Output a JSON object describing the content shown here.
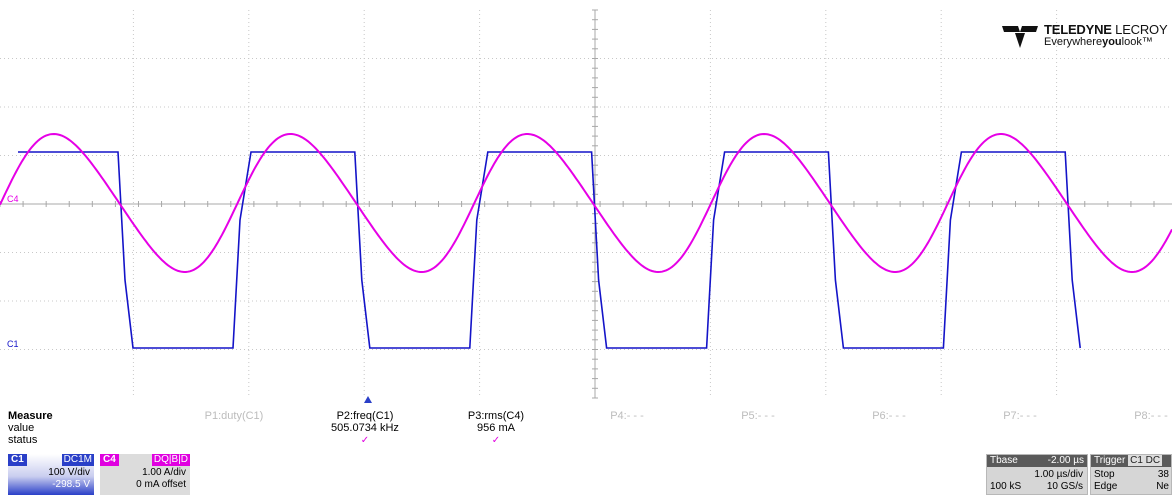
{
  "brand": {
    "name_bold": "TELEDYNE",
    "name_light": "LECROY",
    "tagline_pre": "Everywhere",
    "tagline_bold": "you",
    "tagline_post": "look",
    "tm": "™"
  },
  "traces": {
    "c4": {
      "label": "C4",
      "color": "#e600e6"
    },
    "c1": {
      "label": "C1",
      "color": "#1414c8"
    }
  },
  "measure": {
    "title": "Measure",
    "row_value": "value",
    "row_status": "status",
    "params": [
      {
        "name": "P1:duty(C1)",
        "value": "",
        "status": ""
      },
      {
        "name": "P2:freq(C1)",
        "value": "505.0734 kHz",
        "status": "✓"
      },
      {
        "name": "P3:rms(C4)",
        "value": "956 mA",
        "status": "✓"
      },
      {
        "name": "P4:- - -",
        "value": "",
        "status": ""
      },
      {
        "name": "P5:- - -",
        "value": "",
        "status": ""
      },
      {
        "name": "P6:- - -",
        "value": "",
        "status": ""
      },
      {
        "name": "P7:- - -",
        "value": "",
        "status": ""
      },
      {
        "name": "P8:- - -",
        "value": "",
        "status": ""
      }
    ]
  },
  "c1_desc": {
    "tag": "C1",
    "flags": "DC1M",
    "scale": "100 V/div",
    "offset": "-298.5 V",
    "color": "#2a3fc8"
  },
  "c4_desc": {
    "tag": "C4",
    "flags": "DQ|B|D",
    "scale": "1.00 A/div",
    "offset": "0 mA offset",
    "color": "#e000e0"
  },
  "timebase": {
    "title": "Tbase",
    "delay": "-2.00 µs",
    "scale": "1.00 µs/div",
    "samples": "100 kS",
    "rate": "10 GS/s"
  },
  "trigger": {
    "title": "Trigger",
    "badge": "C1 DC",
    "mode": "Stop",
    "type": "Edge",
    "level": "38",
    "slope": "Ne"
  }
}
